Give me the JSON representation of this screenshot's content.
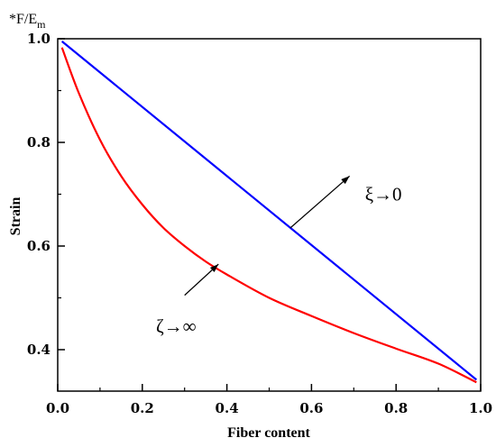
{
  "chart_data": {
    "type": "line",
    "title": "",
    "xlabel": "Fiber content",
    "ylabel": "Strain",
    "y_unit_label": "*F/E",
    "y_unit_sub": "m",
    "xlim": [
      0.0,
      1.0
    ],
    "ylim": [
      0.32,
      1.0
    ],
    "xticks": [
      0.0,
      0.2,
      0.4,
      0.6,
      0.8,
      1.0
    ],
    "xtick_labels": [
      "0.0",
      "0.2",
      "0.4",
      "0.6",
      "0.8",
      "1.0"
    ],
    "yticks": [
      0.4,
      0.6,
      0.8,
      1.0
    ],
    "ytick_labels": [
      "0.4",
      "0.6",
      "0.8",
      "1.0"
    ],
    "grid": false,
    "series": [
      {
        "color": "#0000ff",
        "x": [
          0.01,
          0.99
        ],
        "y": [
          0.995,
          0.342
        ]
      },
      {
        "color": "#ff0000",
        "x": [
          0.01,
          0.05,
          0.1,
          0.15,
          0.2,
          0.25,
          0.3,
          0.35,
          0.4,
          0.5,
          0.6,
          0.7,
          0.8,
          0.9,
          0.99
        ],
        "y": [
          0.983,
          0.895,
          0.805,
          0.735,
          0.68,
          0.635,
          0.6,
          0.57,
          0.545,
          0.5,
          0.465,
          0.432,
          0.402,
          0.373,
          0.337
        ]
      }
    ],
    "annotations": [
      {
        "text": "ξ→0",
        "x": 0.77,
        "y": 0.7,
        "arrow_from": [
          0.69,
          0.735
        ],
        "arrow_to": [
          0.55,
          0.635
        ]
      },
      {
        "text": "ζ→∞",
        "x": 0.28,
        "y": 0.445,
        "arrow_from": [
          0.38,
          0.565
        ],
        "arrow_to": [
          0.3,
          0.505
        ]
      }
    ]
  }
}
